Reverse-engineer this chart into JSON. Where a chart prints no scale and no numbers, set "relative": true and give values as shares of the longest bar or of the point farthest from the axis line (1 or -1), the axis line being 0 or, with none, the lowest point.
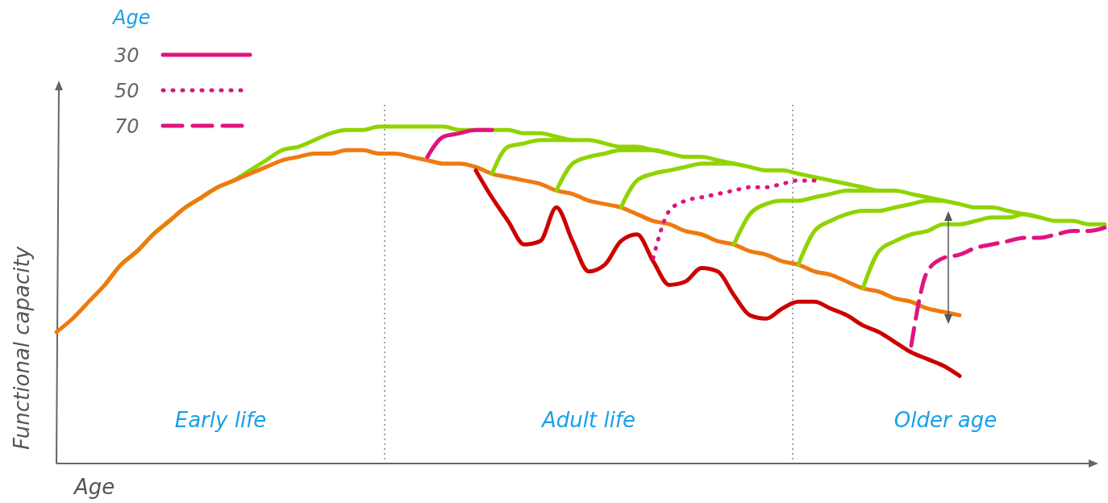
{
  "chart_data": {
    "type": "line",
    "relative": true,
    "xlabel": "Age",
    "ylabel": "Functional capacity",
    "legend_title": "Age",
    "legend": "top left",
    "categories": [
      null,
      null,
      null,
      null,
      null,
      null,
      null,
      null,
      null,
      null,
      null,
      null,
      null,
      null,
      null,
      null,
      null,
      null,
      null,
      null,
      null,
      null,
      null,
      null,
      null,
      null,
      null,
      null,
      null,
      null,
      null,
      null,
      null,
      null,
      null,
      null,
      null,
      null,
      null,
      null,
      null,
      null,
      null,
      null,
      null,
      null,
      null,
      null,
      null,
      null,
      null,
      null,
      null,
      null,
      null,
      null,
      null,
      null,
      null,
      null,
      null,
      null,
      null,
      null,
      null,
      null
    ],
    "series": [
      {
        "color": "#8fd400",
        "values": [
          null,
          null,
          null,
          0.53,
          0.59,
          0.63,
          0.68,
          0.72,
          0.76,
          0.79,
          0.82,
          0.84,
          0.87,
          0.9,
          0.93,
          0.94,
          0.96,
          0.98,
          0.99,
          0.99,
          1.0,
          1.0,
          1.0,
          1.0,
          1.0,
          0.99,
          0.99,
          0.99,
          0.99,
          0.98,
          0.98,
          0.97,
          0.96,
          0.96,
          0.95,
          0.94,
          0.94,
          0.93,
          0.92,
          0.91,
          0.91,
          0.9,
          0.89,
          0.88,
          0.87,
          0.87,
          0.86,
          0.85,
          0.84,
          0.83,
          0.82,
          0.81,
          0.81,
          0.8,
          0.79,
          0.78,
          0.77,
          0.76,
          0.76,
          0.75,
          0.74,
          0.73,
          0.72,
          0.72,
          0.71,
          0.71
        ]
      },
      {
        "color": "#ef7a0f",
        "values": [
          0.39,
          0.43,
          0.48,
          0.53,
          0.59,
          0.63,
          0.68,
          0.72,
          0.76,
          0.79,
          0.82,
          0.84,
          0.86,
          0.88,
          0.9,
          0.91,
          0.92,
          0.92,
          0.93,
          0.93,
          0.92,
          0.92,
          0.91,
          0.9,
          0.89,
          0.89,
          0.88,
          0.86,
          0.85,
          0.84,
          0.83,
          0.81,
          0.8,
          0.78,
          0.77,
          0.76,
          0.74,
          0.72,
          0.71,
          0.69,
          0.68,
          0.66,
          0.65,
          0.63,
          0.62,
          0.6,
          0.59,
          0.57,
          0.56,
          0.54,
          0.52,
          0.51,
          0.49,
          0.48,
          0.46,
          0.45,
          0.44,
          null,
          null,
          null,
          null,
          null,
          null,
          null,
          null,
          null
        ]
      },
      {
        "color": "#cc0000",
        "values": [
          null,
          null,
          null,
          null,
          null,
          null,
          null,
          null,
          null,
          null,
          null,
          null,
          null,
          null,
          null,
          null,
          null,
          null,
          null,
          null,
          null,
          null,
          null,
          null,
          null,
          null,
          0.87,
          0.79,
          0.72,
          0.65,
          0.66,
          0.76,
          0.66,
          0.57,
          0.59,
          0.66,
          0.68,
          0.6,
          0.53,
          0.54,
          0.58,
          0.57,
          0.5,
          0.44,
          0.43,
          0.46,
          0.48,
          0.48,
          0.46,
          0.44,
          0.41,
          0.39,
          0.36,
          0.33,
          0.31,
          0.29,
          0.26,
          null,
          null,
          null,
          null,
          null,
          null,
          null,
          null,
          null
        ]
      },
      {
        "color": "#8fd400",
        "values": [
          null,
          null,
          null,
          null,
          null,
          null,
          null,
          null,
          null,
          null,
          null,
          null,
          null,
          null,
          null,
          null,
          null,
          null,
          null,
          null,
          null,
          null,
          null,
          null,
          null,
          null,
          null,
          0.86,
          0.94,
          0.95,
          0.96,
          0.96,
          0.96,
          null,
          null,
          null,
          null,
          null,
          null,
          null,
          null,
          null,
          null,
          null,
          null,
          null,
          null,
          null,
          null,
          null,
          null,
          null,
          null,
          null,
          null,
          null,
          null,
          null,
          null,
          null,
          null,
          null,
          null,
          null,
          null,
          null
        ]
      },
      {
        "color": "#8fd400",
        "values": [
          null,
          null,
          null,
          null,
          null,
          null,
          null,
          null,
          null,
          null,
          null,
          null,
          null,
          null,
          null,
          null,
          null,
          null,
          null,
          null,
          null,
          null,
          null,
          null,
          null,
          null,
          null,
          null,
          null,
          null,
          null,
          0.81,
          0.89,
          0.91,
          0.92,
          0.93,
          0.93,
          0.93,
          0.92,
          null,
          null,
          null,
          null,
          null,
          null,
          null,
          null,
          null,
          null,
          null,
          null,
          null,
          null,
          null,
          null,
          null,
          null,
          null,
          null,
          null,
          null,
          null,
          null,
          null,
          null,
          null
        ]
      },
      {
        "color": "#8fd400",
        "values": [
          null,
          null,
          null,
          null,
          null,
          null,
          null,
          null,
          null,
          null,
          null,
          null,
          null,
          null,
          null,
          null,
          null,
          null,
          null,
          null,
          null,
          null,
          null,
          null,
          null,
          null,
          null,
          null,
          null,
          null,
          null,
          null,
          null,
          null,
          null,
          0.76,
          0.84,
          0.86,
          0.87,
          0.88,
          0.89,
          0.89,
          0.89,
          null,
          null,
          null,
          null,
          null,
          null,
          null,
          null,
          null,
          null,
          null,
          null,
          null,
          null,
          null,
          null,
          null,
          null,
          null,
          null,
          null,
          null,
          null
        ]
      },
      {
        "color": "#8fd400",
        "values": [
          null,
          null,
          null,
          null,
          null,
          null,
          null,
          null,
          null,
          null,
          null,
          null,
          null,
          null,
          null,
          null,
          null,
          null,
          null,
          null,
          null,
          null,
          null,
          null,
          null,
          null,
          null,
          null,
          null,
          null,
          null,
          null,
          null,
          null,
          null,
          null,
          null,
          null,
          null,
          null,
          null,
          null,
          0.65,
          0.74,
          0.77,
          0.78,
          0.78,
          0.79,
          0.8,
          0.81,
          0.81,
          0.81,
          null,
          null,
          null,
          null,
          null,
          null,
          null,
          null,
          null,
          null,
          null,
          null,
          null,
          null
        ]
      },
      {
        "color": "#8fd400",
        "values": [
          null,
          null,
          null,
          null,
          null,
          null,
          null,
          null,
          null,
          null,
          null,
          null,
          null,
          null,
          null,
          null,
          null,
          null,
          null,
          null,
          null,
          null,
          null,
          null,
          null,
          null,
          null,
          null,
          null,
          null,
          null,
          null,
          null,
          null,
          null,
          null,
          null,
          null,
          null,
          null,
          null,
          null,
          null,
          null,
          null,
          null,
          0.59,
          0.69,
          0.72,
          0.74,
          0.75,
          0.75,
          0.76,
          0.77,
          0.78,
          0.78,
          null,
          null,
          null,
          null,
          null,
          null,
          null,
          null,
          null,
          null
        ]
      },
      {
        "color": "#8fd400",
        "values": [
          null,
          null,
          null,
          null,
          null,
          null,
          null,
          null,
          null,
          null,
          null,
          null,
          null,
          null,
          null,
          null,
          null,
          null,
          null,
          null,
          null,
          null,
          null,
          null,
          null,
          null,
          null,
          null,
          null,
          null,
          null,
          null,
          null,
          null,
          null,
          null,
          null,
          null,
          null,
          null,
          null,
          null,
          null,
          null,
          null,
          null,
          null,
          null,
          null,
          null,
          0.52,
          0.63,
          0.66,
          0.68,
          0.69,
          0.71,
          0.71,
          0.72,
          0.73,
          0.73,
          0.74,
          0.73,
          null,
          null,
          null,
          null
        ]
      },
      {
        "name": "30",
        "color": "#e0147f",
        "line_style": "solid",
        "values": [
          null,
          null,
          null,
          null,
          null,
          null,
          null,
          null,
          null,
          null,
          null,
          null,
          null,
          null,
          null,
          null,
          null,
          null,
          null,
          null,
          null,
          null,
          null,
          0.91,
          0.97,
          0.98,
          0.99,
          0.99,
          null,
          null,
          null,
          null,
          null,
          null,
          null,
          null,
          null,
          null,
          null,
          null,
          null,
          null,
          null,
          null,
          null,
          null,
          null,
          null,
          null,
          null,
          null,
          null,
          null,
          null,
          null,
          null,
          null,
          null,
          null,
          null,
          null,
          null,
          null,
          null,
          null,
          null
        ]
      },
      {
        "name": "50",
        "color": "#e0147f",
        "line_style": "dotted",
        "values": [
          null,
          null,
          null,
          null,
          null,
          null,
          null,
          null,
          null,
          null,
          null,
          null,
          null,
          null,
          null,
          null,
          null,
          null,
          null,
          null,
          null,
          null,
          null,
          null,
          null,
          null,
          null,
          null,
          null,
          null,
          null,
          null,
          null,
          null,
          null,
          null,
          null,
          0.61,
          0.75,
          0.78,
          0.79,
          0.8,
          0.81,
          0.82,
          0.82,
          0.83,
          0.84,
          0.84,
          null,
          null,
          null,
          null,
          null,
          null,
          null,
          null,
          null,
          null,
          null,
          null,
          null,
          null,
          null,
          null,
          null,
          null
        ]
      },
      {
        "name": "70",
        "color": "#e0147f",
        "line_style": "dashed",
        "values": [
          null,
          null,
          null,
          null,
          null,
          null,
          null,
          null,
          null,
          null,
          null,
          null,
          null,
          null,
          null,
          null,
          null,
          null,
          null,
          null,
          null,
          null,
          null,
          null,
          null,
          null,
          null,
          null,
          null,
          null,
          null,
          null,
          null,
          null,
          null,
          null,
          null,
          null,
          null,
          null,
          null,
          null,
          null,
          null,
          null,
          null,
          null,
          null,
          null,
          null,
          null,
          null,
          null,
          0.35,
          0.57,
          0.61,
          0.62,
          0.64,
          0.65,
          0.66,
          0.67,
          0.67,
          0.68,
          0.69,
          0.69,
          0.7
        ]
      }
    ],
    "annotations": [
      "Early life",
      "Adult life",
      "Older age"
    ]
  }
}
